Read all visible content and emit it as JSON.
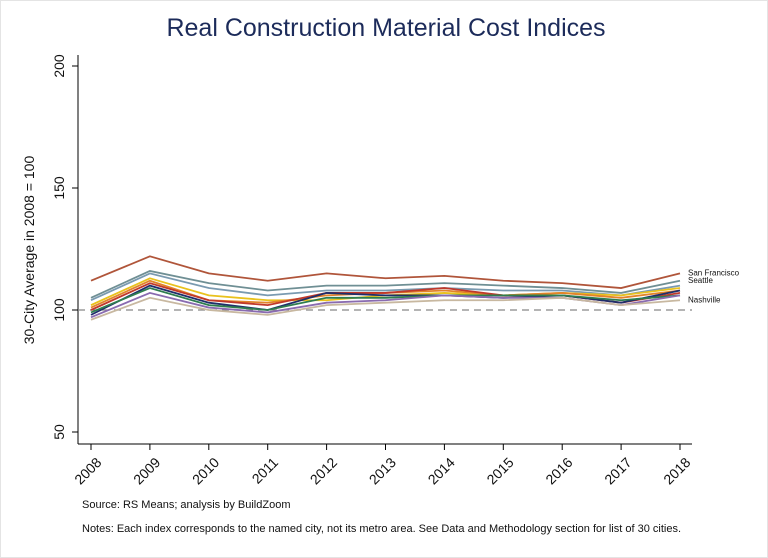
{
  "chart_data": {
    "type": "line",
    "title": "Real Construction Material Cost Indices",
    "y_label": "30-City Average in 2008 = 100",
    "source": "Source: RS Means; analysis by BuildZoom",
    "notes": "Notes: Each index corresponds to the named city, not its metro area. See Data and Methodology section for list of 30 cities.",
    "x": [
      2008,
      2009,
      2010,
      2011,
      2012,
      2013,
      2014,
      2015,
      2016,
      2017,
      2018
    ],
    "xlim": [
      2008,
      2018
    ],
    "xticks": [
      2008,
      2009,
      2010,
      2011,
      2012,
      2013,
      2014,
      2015,
      2016,
      2017,
      2018
    ],
    "ylim": [
      50,
      200
    ],
    "yticks": [
      50,
      100,
      150,
      200
    ],
    "reference_line": 100,
    "series": [
      {
        "color": "#7a9ab0",
        "values": [
          104,
          115,
          109,
          106,
          108,
          108,
          109,
          108,
          108,
          106,
          110
        ]
      },
      {
        "color": "#e9c21d",
        "values": [
          102,
          113,
          106,
          104,
          104,
          106,
          107,
          106,
          107,
          106,
          109
        ]
      },
      {
        "color": "#e2832a",
        "values": [
          101,
          112,
          104,
          103,
          106,
          107,
          108,
          106,
          107,
          105,
          108
        ]
      },
      {
        "color": "#c0392b",
        "values": [
          100,
          111,
          104,
          102,
          107,
          107,
          109,
          106,
          106,
          103,
          107
        ]
      },
      {
        "color": "#1f2e6b",
        "values": [
          98,
          110,
          103,
          100,
          107,
          106,
          106,
          105,
          106,
          103,
          108
        ]
      },
      {
        "color": "#2e7d4f",
        "values": [
          99,
          109,
          102,
          100,
          105,
          105,
          106,
          106,
          106,
          104,
          106
        ]
      },
      {
        "color": "#8a6bb0",
        "values": [
          97,
          107,
          101,
          99,
          103,
          104,
          106,
          105,
          105,
          102,
          106
        ]
      },
      {
        "name": "Nashville",
        "color": "#c8b8a0",
        "values": [
          96,
          105,
          100,
          98,
          102,
          103,
          104,
          104,
          105,
          102,
          104
        ]
      },
      {
        "name": "Seattle",
        "color": "#6f8f94",
        "values": [
          105,
          116,
          111,
          108,
          110,
          110,
          111,
          110,
          109,
          107,
          112
        ]
      },
      {
        "name": "San Francisco",
        "color": "#b0553a",
        "values": [
          112,
          122,
          115,
          112,
          115,
          113,
          114,
          112,
          111,
          109,
          115
        ]
      }
    ]
  }
}
